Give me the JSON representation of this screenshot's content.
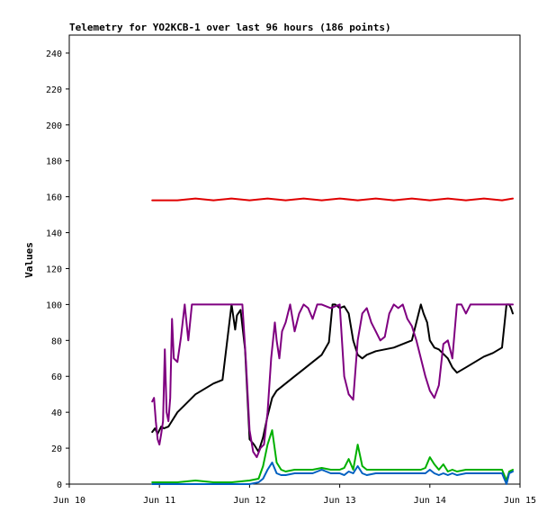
{
  "chart_data": {
    "type": "line",
    "title": "Telemetry for YO2KCB-1 over last 96 hours (186 points)",
    "xlabel": "",
    "ylabel": "Values",
    "x_range": [
      "Jun 10",
      "Jun 15"
    ],
    "x_ticks": [
      "Jun 10",
      "Jun 11",
      "Jun 12",
      "Jun 13",
      "Jun 14",
      "Jun 15"
    ],
    "ylim": [
      0,
      250
    ],
    "y_ticks": [
      0,
      20,
      40,
      60,
      80,
      100,
      120,
      140,
      160,
      180,
      200,
      220,
      240
    ],
    "grid": false,
    "legend": "none",
    "series": [
      {
        "color": "#e00000",
        "x": [
          10.92,
          11.0,
          11.2,
          11.4,
          11.6,
          11.8,
          12.0,
          12.2,
          12.4,
          12.6,
          12.8,
          13.0,
          13.2,
          13.4,
          13.6,
          13.8,
          14.0,
          14.2,
          14.4,
          14.6,
          14.8,
          14.92
        ],
        "y": [
          158,
          158,
          158,
          159,
          158,
          159,
          158,
          159,
          158,
          159,
          158,
          159,
          158,
          159,
          158,
          159,
          158,
          159,
          158,
          159,
          158,
          159
        ]
      },
      {
        "color": "#000000",
        "x": [
          10.92,
          10.95,
          10.98,
          11.02,
          11.05,
          11.1,
          11.2,
          11.3,
          11.4,
          11.5,
          11.6,
          11.7,
          11.8,
          11.84,
          11.86,
          11.9,
          11.95,
          12.0,
          12.05,
          12.1,
          12.15,
          12.2,
          12.25,
          12.3,
          12.4,
          12.5,
          12.6,
          12.7,
          12.8,
          12.88,
          12.92,
          12.95,
          13.0,
          13.05,
          13.1,
          13.15,
          13.2,
          13.25,
          13.3,
          13.4,
          13.5,
          13.6,
          13.7,
          13.8,
          13.9,
          13.93,
          13.97,
          14.0,
          14.05,
          14.1,
          14.2,
          14.25,
          14.3,
          14.4,
          14.5,
          14.6,
          14.7,
          14.8,
          14.85,
          14.88,
          14.9,
          14.92
        ],
        "y": [
          29,
          31,
          28,
          32,
          31,
          32,
          40,
          45,
          50,
          53,
          56,
          58,
          100,
          86,
          94,
          97,
          75,
          25,
          22,
          18,
          26,
          38,
          48,
          52,
          56,
          60,
          64,
          68,
          72,
          79,
          100,
          100,
          98,
          99,
          95,
          80,
          72,
          70,
          72,
          74,
          75,
          76,
          78,
          80,
          100,
          95,
          90,
          80,
          76,
          75,
          70,
          65,
          62,
          65,
          68,
          71,
          73,
          76,
          100,
          100,
          98,
          95
        ]
      },
      {
        "color": "#7f0080",
        "x": [
          10.92,
          10.94,
          10.96,
          10.98,
          11.0,
          11.02,
          11.04,
          11.06,
          11.08,
          11.1,
          11.12,
          11.14,
          11.16,
          11.2,
          11.24,
          11.28,
          11.32,
          11.36,
          11.4,
          11.44,
          11.48,
          11.52,
          11.56,
          11.6,
          11.8,
          11.92,
          11.96,
          12.0,
          12.04,
          12.08,
          12.12,
          12.16,
          12.2,
          12.24,
          12.28,
          12.3,
          12.33,
          12.36,
          12.4,
          12.45,
          12.5,
          12.55,
          12.6,
          12.65,
          12.7,
          12.75,
          12.8,
          12.9,
          13.0,
          13.05,
          13.1,
          13.15,
          13.2,
          13.25,
          13.3,
          13.35,
          13.4,
          13.45,
          13.5,
          13.55,
          13.6,
          13.65,
          13.7,
          13.75,
          13.8,
          13.85,
          13.9,
          13.95,
          14.0,
          14.05,
          14.1,
          14.15,
          14.2,
          14.25,
          14.3,
          14.35,
          14.4,
          14.45,
          14.5,
          14.6,
          14.7,
          14.8,
          14.9,
          14.92
        ],
        "y": [
          46,
          48,
          35,
          25,
          22,
          28,
          35,
          75,
          40,
          35,
          48,
          92,
          70,
          68,
          82,
          100,
          80,
          100,
          100,
          100,
          100,
          100,
          100,
          100,
          100,
          100,
          68,
          30,
          18,
          15,
          20,
          22,
          40,
          70,
          90,
          80,
          70,
          85,
          90,
          100,
          85,
          95,
          100,
          98,
          92,
          100,
          100,
          98,
          100,
          60,
          50,
          47,
          80,
          95,
          98,
          90,
          85,
          80,
          82,
          95,
          100,
          98,
          100,
          92,
          88,
          80,
          70,
          60,
          52,
          48,
          55,
          78,
          80,
          70,
          100,
          100,
          95,
          100,
          100,
          100,
          100,
          100,
          100,
          100
        ]
      },
      {
        "color": "#00b000",
        "x": [
          10.92,
          11.0,
          11.2,
          11.4,
          11.6,
          11.8,
          12.0,
          12.1,
          12.15,
          12.2,
          12.25,
          12.3,
          12.35,
          12.4,
          12.5,
          12.6,
          12.7,
          12.8,
          12.9,
          13.0,
          13.05,
          13.1,
          13.15,
          13.2,
          13.25,
          13.3,
          13.4,
          13.5,
          13.6,
          13.7,
          13.8,
          13.9,
          13.95,
          14.0,
          14.05,
          14.1,
          14.15,
          14.2,
          14.25,
          14.3,
          14.4,
          14.5,
          14.6,
          14.7,
          14.8,
          14.85,
          14.88,
          14.92
        ],
        "y": [
          1,
          1,
          1,
          2,
          1,
          1,
          2,
          3,
          10,
          22,
          30,
          12,
          8,
          7,
          8,
          8,
          8,
          9,
          8,
          8,
          9,
          14,
          8,
          22,
          10,
          8,
          8,
          8,
          8,
          8,
          8,
          8,
          9,
          15,
          11,
          8,
          11,
          7,
          8,
          7,
          8,
          8,
          8,
          8,
          8,
          2,
          7,
          8
        ]
      },
      {
        "color": "#0060c0",
        "x": [
          10.92,
          11.0,
          11.2,
          11.4,
          11.6,
          11.8,
          12.0,
          12.1,
          12.15,
          12.2,
          12.25,
          12.3,
          12.35,
          12.4,
          12.5,
          12.6,
          12.7,
          12.8,
          12.9,
          13.0,
          13.05,
          13.1,
          13.15,
          13.2,
          13.25,
          13.3,
          13.4,
          13.5,
          13.6,
          13.7,
          13.8,
          13.9,
          13.95,
          14.0,
          14.05,
          14.1,
          14.15,
          14.2,
          14.25,
          14.3,
          14.4,
          14.5,
          14.6,
          14.7,
          14.8,
          14.85,
          14.88,
          14.92
        ],
        "y": [
          0,
          0,
          0,
          0,
          0,
          0,
          0,
          1,
          3,
          8,
          12,
          6,
          5,
          5,
          6,
          6,
          6,
          8,
          6,
          6,
          5,
          7,
          6,
          10,
          6,
          5,
          6,
          6,
          6,
          6,
          6,
          6,
          6,
          8,
          6,
          5,
          6,
          5,
          6,
          5,
          6,
          6,
          6,
          6,
          6,
          0,
          6,
          7
        ]
      }
    ]
  }
}
